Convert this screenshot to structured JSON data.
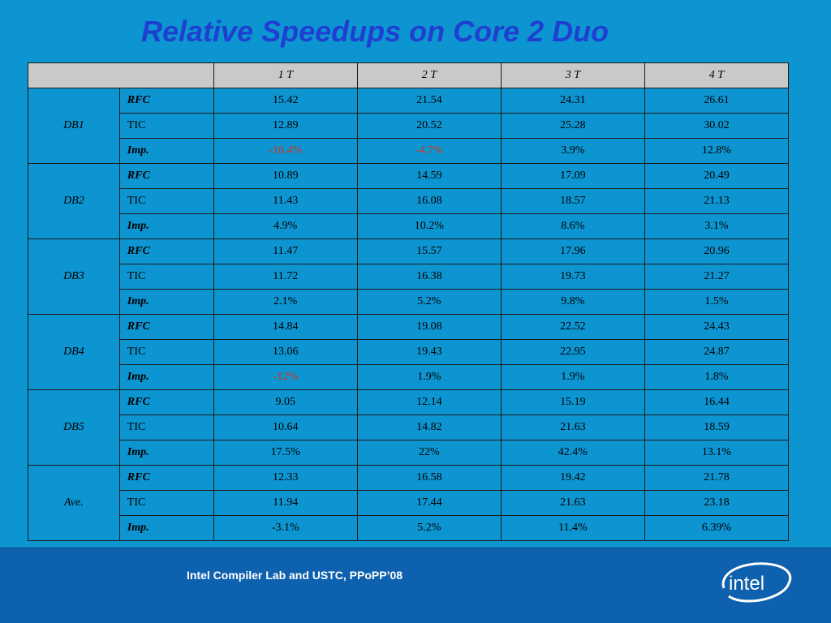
{
  "title": "Relative Speedups on Core 2 Duo",
  "table": {
    "columns": [
      "",
      "1 T",
      "2 T",
      "3 T",
      "4 T"
    ],
    "groups": [
      {
        "name": "DB1",
        "rows": [
          {
            "metric": "RFC",
            "values": [
              "15.42",
              "21.54",
              "24.31",
              "26.61"
            ]
          },
          {
            "metric": "TIC",
            "values": [
              "12.89",
              "20.52",
              "25.28",
              "30.02"
            ]
          },
          {
            "metric": "Imp.",
            "values": [
              "-16.4%",
              "-4.7%",
              "3.9%",
              "12.8%"
            ]
          }
        ]
      },
      {
        "name": "DB2",
        "rows": [
          {
            "metric": "RFC",
            "values": [
              "10.89",
              "14.59",
              "17.09",
              "20.49"
            ]
          },
          {
            "metric": "TIC",
            "values": [
              "11.43",
              "16.08",
              "18.57",
              "21.13"
            ]
          },
          {
            "metric": "Imp.",
            "values": [
              "4.9%",
              "10.2%",
              "8.6%",
              "3.1%"
            ]
          }
        ]
      },
      {
        "name": "DB3",
        "rows": [
          {
            "metric": "RFC",
            "values": [
              "11.47",
              "15.57",
              "17.96",
              "20.96"
            ]
          },
          {
            "metric": "TIC",
            "values": [
              "11.72",
              "16.38",
              "19.73",
              "21.27"
            ]
          },
          {
            "metric": "Imp.",
            "values": [
              "2.1%",
              "5.2%",
              "9.8%",
              "1.5%"
            ]
          }
        ]
      },
      {
        "name": "DB4",
        "rows": [
          {
            "metric": "RFC",
            "values": [
              "14.84",
              "19.08",
              "22.52",
              "24.43"
            ]
          },
          {
            "metric": "TIC",
            "values": [
              "13.06",
              "19.43",
              "22.95",
              "24.87"
            ]
          },
          {
            "metric": "Imp.",
            "values": [
              "-12%",
              "1.9%",
              "1.9%",
              "1.8%"
            ]
          }
        ]
      },
      {
        "name": "DB5",
        "rows": [
          {
            "metric": "RFC",
            "values": [
              "9.05",
              "12.14",
              "15.19",
              "16.44"
            ]
          },
          {
            "metric": "TIC",
            "values": [
              "10.64",
              "14.82",
              "21.63",
              "18.59"
            ]
          },
          {
            "metric": "Imp.",
            "values": [
              "17.5%",
              "22%",
              "42.4%",
              "13.1%"
            ]
          }
        ]
      },
      {
        "name": "Ave.",
        "rows": [
          {
            "metric": "RFC",
            "values": [
              "12.33",
              "16.58",
              "19.42",
              "21.78"
            ]
          },
          {
            "metric": "TIC",
            "values": [
              "11.94",
              "17.44",
              "21.63",
              "23.18"
            ]
          },
          {
            "metric": "Imp.",
            "values": [
              "-3.1%",
              "5.2%",
              "11.4%",
              "6.39%"
            ]
          }
        ]
      }
    ]
  },
  "footer": {
    "text": "Intel Compiler Lab and USTC, PPoPP’08",
    "logo_text": "intel"
  },
  "colors": {
    "background": "#0d95d1",
    "title": "#1f3fd1",
    "footer_band": "#0e61ae",
    "header_row": "#c9c9c9",
    "negative_value": "#d9311a"
  }
}
